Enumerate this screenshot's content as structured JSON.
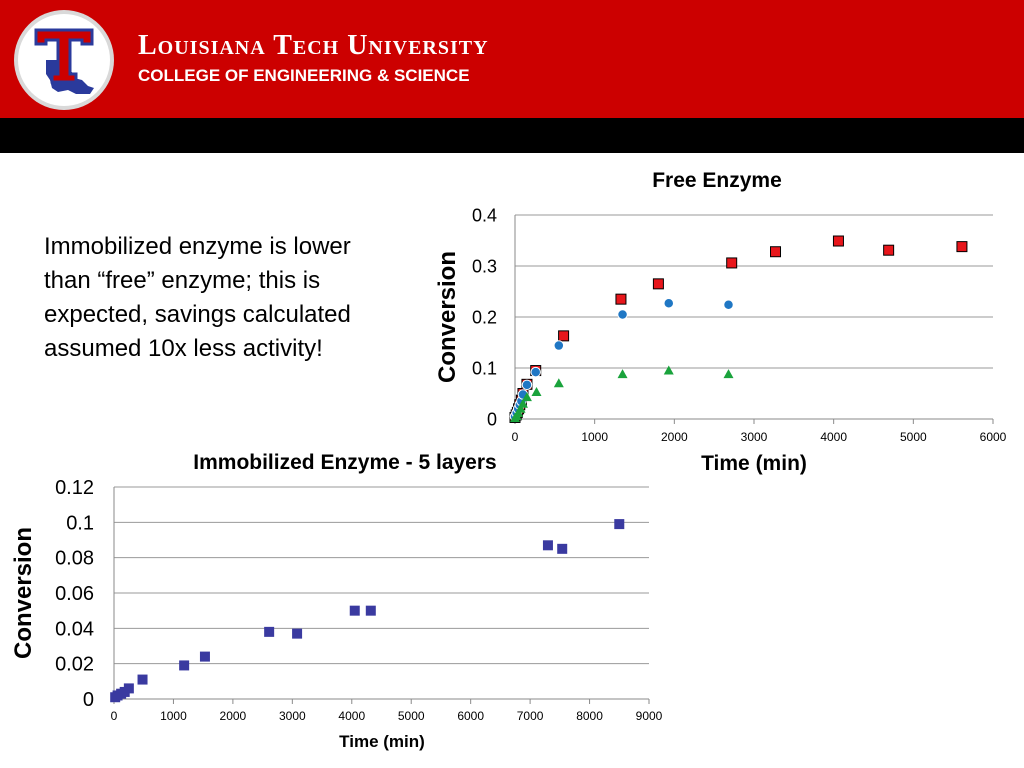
{
  "header": {
    "university": "Louisiana Tech University",
    "college": "COLLEGE OF ENGINEERING & SCIENCE",
    "colors": {
      "red": "#cc0000",
      "black": "#000000",
      "logo_blue": "#2a3a9c"
    },
    "logo_letter": "T",
    "logo_icon": "louisiana-tech-logo-icon"
  },
  "note": "Immobilized enzyme is lower than “free” enzyme; this is expected, savings calculated assumed 10x less activity!",
  "chart_data": [
    {
      "type": "scatter",
      "title": "Free Enzyme",
      "xlabel": "Time (min)",
      "ylabel": "Conversion",
      "xlim": [
        0,
        6000
      ],
      "ylim": [
        0,
        0.4
      ],
      "xticks": [
        0,
        1000,
        2000,
        3000,
        4000,
        5000,
        6000
      ],
      "yticks": [
        0,
        0.1,
        0.2,
        0.3,
        0.4
      ],
      "yticklabels": [
        "0",
        "0.1",
        "0.2",
        "0.3",
        "0.4"
      ],
      "grid": "horizontal",
      "series": [
        {
          "marker": "square",
          "color": "#e8161b",
          "points": [
            [
              0,
              0.003
            ],
            [
              15,
              0.008
            ],
            [
              30,
              0.013
            ],
            [
              45,
              0.02
            ],
            [
              60,
              0.028
            ],
            [
              80,
              0.037
            ],
            [
              100,
              0.05
            ],
            [
              150,
              0.068
            ],
            [
              260,
              0.095
            ],
            [
              610,
              0.163
            ],
            [
              1330,
              0.235
            ],
            [
              1800,
              0.265
            ],
            [
              2720,
              0.306
            ],
            [
              3270,
              0.328
            ],
            [
              4060,
              0.349
            ],
            [
              4690,
              0.331
            ],
            [
              5610,
              0.338
            ]
          ]
        },
        {
          "marker": "circle",
          "color": "#1f77c4",
          "points": [
            [
              0,
              0.005
            ],
            [
              20,
              0.012
            ],
            [
              40,
              0.02
            ],
            [
              60,
              0.028
            ],
            [
              80,
              0.035
            ],
            [
              100,
              0.048
            ],
            [
              150,
              0.067
            ],
            [
              260,
              0.092
            ],
            [
              550,
              0.144
            ],
            [
              1350,
              0.205
            ],
            [
              1930,
              0.227
            ],
            [
              2680,
              0.224
            ]
          ]
        },
        {
          "marker": "triangle",
          "color": "#1aa33c",
          "points": [
            [
              0,
              0.002
            ],
            [
              20,
              0.006
            ],
            [
              40,
              0.012
            ],
            [
              70,
              0.02
            ],
            [
              100,
              0.03
            ],
            [
              150,
              0.043
            ],
            [
              270,
              0.053
            ],
            [
              550,
              0.07
            ],
            [
              1350,
              0.088
            ],
            [
              1930,
              0.095
            ],
            [
              2680,
              0.088
            ]
          ]
        }
      ]
    },
    {
      "type": "scatter",
      "title": "Immobilized Enzyme - 5 layers",
      "xlabel": "Time (min)",
      "ylabel": "Conversion",
      "xlim": [
        0,
        9000
      ],
      "ylim": [
        0,
        0.12
      ],
      "xticks": [
        0,
        1000,
        2000,
        3000,
        4000,
        5000,
        6000,
        7000,
        8000,
        9000
      ],
      "yticks": [
        0,
        0.02,
        0.04,
        0.06,
        0.08,
        0.1,
        0.12
      ],
      "yticklabels": [
        "0",
        "0.02",
        "0.04",
        "0.06",
        "0.08",
        "0.1",
        "0.12"
      ],
      "grid": "horizontal",
      "series": [
        {
          "marker": "square",
          "color": "#3a3aa0",
          "points": [
            [
              20,
              0.001
            ],
            [
              60,
              0.002
            ],
            [
              120,
              0.003
            ],
            [
              180,
              0.004
            ],
            [
              250,
              0.006
            ],
            [
              480,
              0.011
            ],
            [
              1180,
              0.019
            ],
            [
              1530,
              0.024
            ],
            [
              2610,
              0.038
            ],
            [
              3080,
              0.037
            ],
            [
              4050,
              0.05
            ],
            [
              4320,
              0.05
            ],
            [
              7300,
              0.087
            ],
            [
              7540,
              0.085
            ],
            [
              8500,
              0.099
            ]
          ]
        }
      ]
    }
  ]
}
